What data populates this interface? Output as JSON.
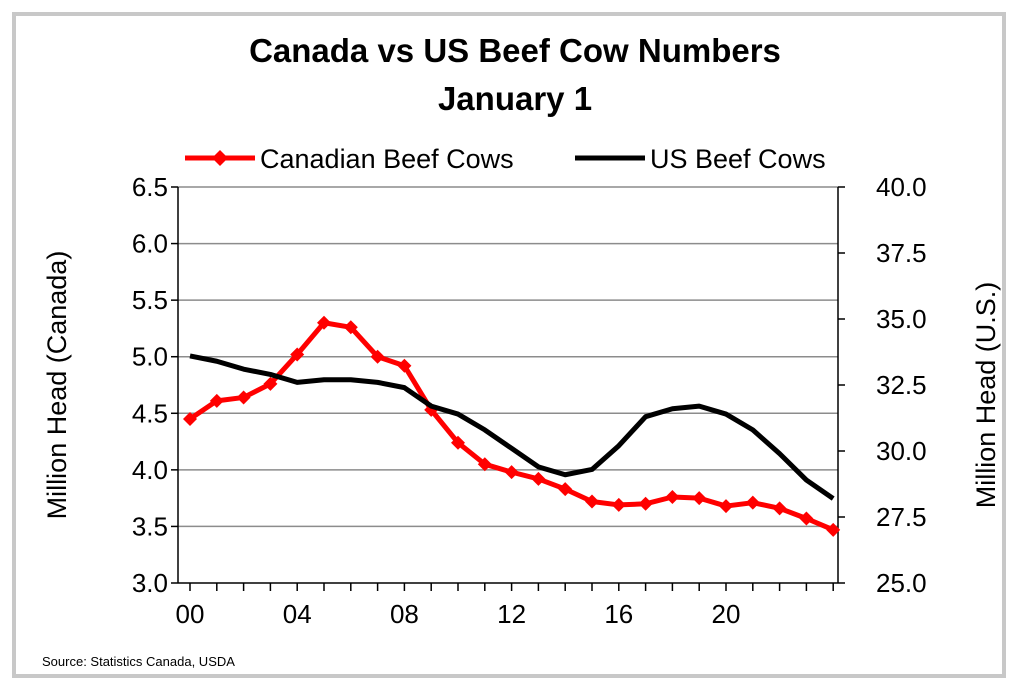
{
  "chart_data": {
    "type": "line",
    "title": [
      "Canada vs US Beef Cow Numbers",
      "January 1"
    ],
    "source": "Source: Statistics Canada, USDA",
    "x": [
      0,
      1,
      2,
      3,
      4,
      5,
      6,
      7,
      8,
      9,
      10,
      11,
      12,
      13,
      14,
      15,
      16,
      17,
      18,
      19,
      20,
      21,
      22,
      23,
      24
    ],
    "x_tick_labels": [
      "00",
      "04",
      "08",
      "12",
      "16",
      "20"
    ],
    "x_tick_values": [
      0,
      4,
      8,
      12,
      16,
      20
    ],
    "ylabel_left": "Million Head (Canada)",
    "ylabel_right": "Million Head (U.S.)",
    "ylim_left": [
      3.0,
      6.5
    ],
    "ylim_right": [
      25.0,
      40.0
    ],
    "y_ticks_left": [
      "3.0",
      "3.5",
      "4.0",
      "4.5",
      "5.0",
      "5.5",
      "6.0",
      "6.5"
    ],
    "y_ticks_right": [
      "25.0",
      "27.5",
      "30.0",
      "32.5",
      "35.0",
      "37.5",
      "40.0"
    ],
    "grid": true,
    "legend_position": "top",
    "series": [
      {
        "name": "Canadian Beef Cows",
        "axis": "left",
        "color": "#ff0000",
        "marker": "diamond",
        "values": [
          4.45,
          4.61,
          4.64,
          4.76,
          5.02,
          5.3,
          5.26,
          5.0,
          4.92,
          4.53,
          4.24,
          4.05,
          3.98,
          3.92,
          3.83,
          3.72,
          3.69,
          3.7,
          3.76,
          3.75,
          3.68,
          3.71,
          3.66,
          3.57,
          3.47
        ]
      },
      {
        "name": "US Beef Cows",
        "axis": "right",
        "color": "#000000",
        "marker": "none",
        "values": [
          33.6,
          33.4,
          33.1,
          32.9,
          32.6,
          32.7,
          32.7,
          32.6,
          32.4,
          31.7,
          31.4,
          30.8,
          30.1,
          29.4,
          29.1,
          29.3,
          30.2,
          31.3,
          31.6,
          31.7,
          31.4,
          30.8,
          29.9,
          28.9,
          28.2
        ]
      }
    ]
  }
}
